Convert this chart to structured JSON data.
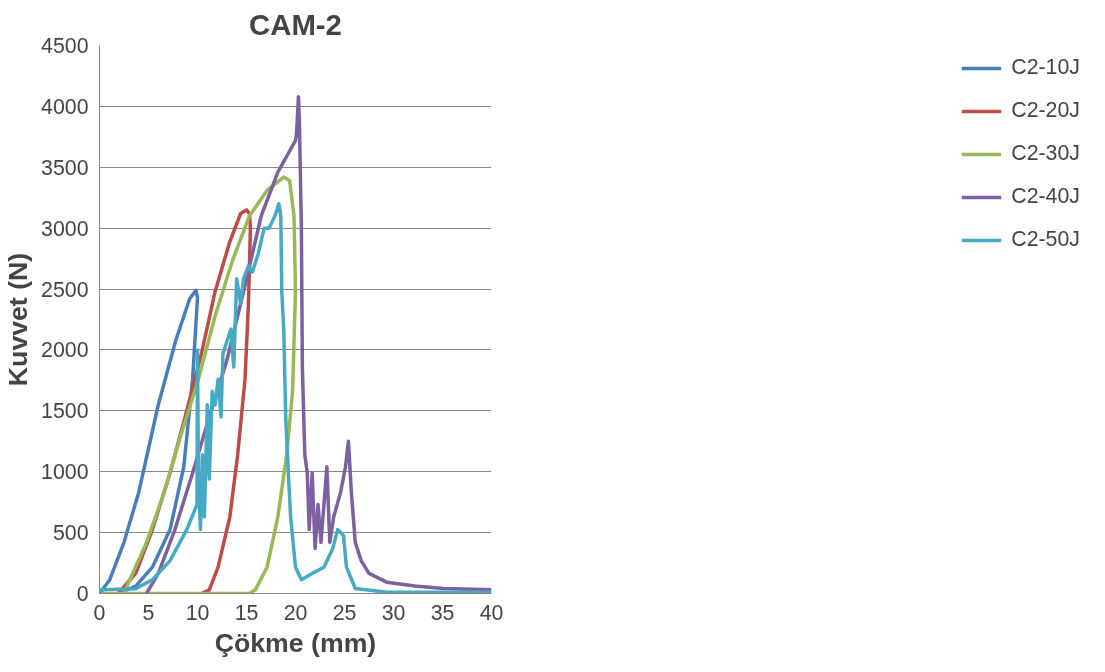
{
  "chart_data": {
    "type": "line",
    "title": "CAM-2",
    "xlabel": "Çökme (mm)",
    "ylabel": "Kuvvet (N)",
    "xlim": [
      0,
      40
    ],
    "xticks": [
      0,
      5,
      10,
      15,
      20,
      25,
      30,
      35,
      40
    ],
    "ylim": [
      0,
      4500
    ],
    "yticks": [
      0,
      500,
      1000,
      1500,
      2000,
      2500,
      3000,
      3500,
      4000,
      4500
    ],
    "grid": "y",
    "legend": "right",
    "marker": "none",
    "line_style": "solid",
    "series": [
      {
        "name": "C2-10J",
        "color": "#4a7ebb",
        "x": [
          0,
          1.05,
          2.5,
          4.0,
          6.0,
          7.75,
          9.2,
          9.85,
          10.0,
          9.5,
          8.6,
          7.2,
          5.4,
          3.7,
          1.9
        ],
        "values": [
          0,
          113,
          420,
          830,
          1550,
          2070,
          2420,
          2490,
          2430,
          1760,
          1040,
          525,
          216,
          60,
          0
        ]
      },
      {
        "name": "C2-20J",
        "color": "#be4b48",
        "x": [
          1.9,
          3.7,
          5.4,
          7.2,
          8.9,
          10.4,
          11.8,
          13.3,
          14.4,
          15.0,
          15.3,
          15.4,
          15.2,
          14.85,
          14.1,
          13.3,
          12.1,
          11.2,
          10.4
        ],
        "values": [
          0,
          165,
          525,
          990,
          1500,
          1970,
          2480,
          2890,
          3120,
          3150,
          3120,
          3000,
          2380,
          1760,
          1140,
          630,
          216,
          30,
          0
        ]
      },
      {
        "name": "C2-30J",
        "color": "#98b954",
        "x": [
          2.5,
          3.1,
          4.8,
          6.6,
          8.3,
          10.1,
          11.8,
          13.6,
          15.3,
          17.1,
          18.8,
          19.4,
          19.85,
          20.0,
          19.7,
          19.1,
          18.2,
          17.1,
          15.9,
          15.3,
          0.2
        ],
        "values": [
          0,
          113,
          420,
          830,
          1300,
          1760,
          2280,
          2740,
          3100,
          3310,
          3420,
          3390,
          3100,
          2480,
          1660,
          1140,
          630,
          216,
          30,
          0,
          0
        ]
      },
      {
        "name": "C2-40J",
        "color": "#7d60a0",
        "x": [
          4.8,
          6.0,
          7.7,
          9.5,
          11.2,
          13.0,
          14.7,
          16.5,
          18.2,
          20.0,
          20.1,
          20.3,
          20.4,
          20.6,
          20.7,
          20.95,
          21.2,
          21.4,
          21.7,
          22.0,
          22.3,
          22.6,
          22.9,
          23.2,
          23.5,
          23.9,
          24.6,
          25.1,
          25.4,
          25.7,
          26.1,
          26.7,
          27.5,
          29.3,
          32.2,
          35.1,
          40
        ],
        "values": [
          0,
          165,
          525,
          990,
          1450,
          1915,
          2480,
          3100,
          3460,
          3720,
          3770,
          4080,
          3870,
          3000,
          1860,
          1140,
          990,
          525,
          990,
          370,
          730,
          420,
          730,
          1040,
          420,
          630,
          830,
          1040,
          1250,
          830,
          420,
          270,
          165,
          93,
          62,
          41,
          31
        ]
      },
      {
        "name": "C2-50J",
        "color": "#46aac5",
        "x": [
          0,
          3.7,
          5.4,
          7.2,
          8.9,
          9.95,
          10.0,
          10.1,
          10.3,
          10.5,
          10.7,
          11.0,
          11.2,
          11.5,
          11.8,
          12.1,
          12.4,
          12.6,
          13.0,
          13.4,
          13.7,
          14.0,
          14.4,
          14.7,
          15.2,
          15.6,
          16.2,
          16.8,
          17.3,
          17.9,
          18.3,
          18.5,
          18.6,
          18.8,
          19.0,
          19.3,
          19.5,
          20.0,
          20.6,
          21.7,
          22.9,
          23.8,
          24.3,
          24.9,
          25.2,
          26.1,
          29.3,
          40
        ],
        "values": [
          31,
          40,
          113,
          270,
          525,
          730,
          2000,
          940,
          525,
          1140,
          630,
          1550,
          940,
          1660,
          1550,
          1760,
          1450,
          1970,
          2070,
          2170,
          1860,
          2585,
          2380,
          2585,
          2690,
          2640,
          2790,
          3000,
          3000,
          3100,
          3200,
          3100,
          2480,
          2170,
          1450,
          940,
          630,
          216,
          113,
          165,
          216,
          370,
          525,
          475,
          216,
          41,
          10,
          10
        ]
      }
    ]
  }
}
